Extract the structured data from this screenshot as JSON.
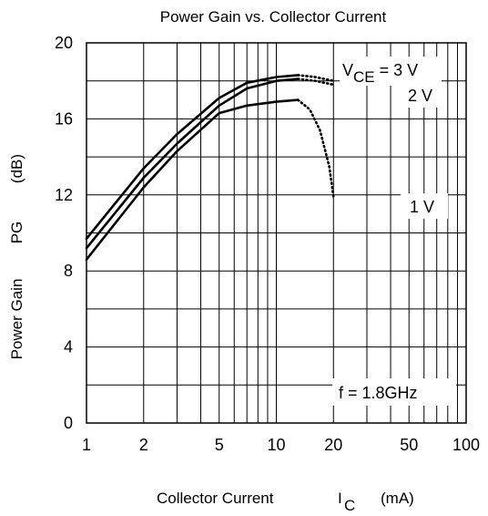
{
  "chart_data": {
    "type": "line",
    "title": "Power Gain vs. Collector Current",
    "xlabel": {
      "main": "Collector Current",
      "symbol": "I",
      "subscript": "C",
      "unit": "(mA)"
    },
    "ylabel": {
      "main": "Power Gain",
      "symbol": "PG",
      "unit": "(dB)"
    },
    "x_scale": "log",
    "xlim": [
      1,
      100
    ],
    "ylim": [
      0,
      20
    ],
    "x_ticks": [
      1,
      2,
      5,
      10,
      20,
      50,
      100
    ],
    "x_tick_labels": [
      "1",
      "2",
      "5",
      "10",
      "20",
      "50",
      "100"
    ],
    "y_ticks": [
      0,
      4,
      8,
      12,
      16,
      20
    ],
    "y_tick_labels": [
      "0",
      "4",
      "8",
      "12",
      "16",
      "20"
    ],
    "grid": true,
    "condition_label": "f = 1.8GHz",
    "series": [
      {
        "name": "3 V",
        "label_prefix": {
          "symbol": "V",
          "subscript": "CE",
          "text": " = 3 V"
        },
        "x": [
          1,
          2,
          3,
          5,
          7,
          10,
          13
        ],
        "y": [
          9.7,
          13.4,
          15.2,
          17.1,
          17.9,
          18.2,
          18.3
        ],
        "dotted_x": [
          13,
          16,
          20
        ],
        "dotted_y": [
          18.3,
          18.2,
          18.0
        ]
      },
      {
        "name": "2 V",
        "x": [
          1,
          2,
          3,
          5,
          7,
          10,
          13
        ],
        "y": [
          9.2,
          12.9,
          14.7,
          16.7,
          17.6,
          18.0,
          18.1
        ],
        "dotted_x": [
          13,
          16,
          20
        ],
        "dotted_y": [
          18.1,
          18.0,
          17.8
        ]
      },
      {
        "name": "1 V",
        "x": [
          1,
          2,
          3,
          5,
          7,
          10,
          13
        ],
        "y": [
          8.6,
          12.4,
          14.3,
          16.3,
          16.7,
          16.9,
          17.0
        ],
        "dotted_x": [
          13,
          15,
          17,
          19,
          20
        ],
        "dotted_y": [
          17.0,
          16.5,
          15.4,
          13.5,
          11.9
        ]
      }
    ]
  }
}
